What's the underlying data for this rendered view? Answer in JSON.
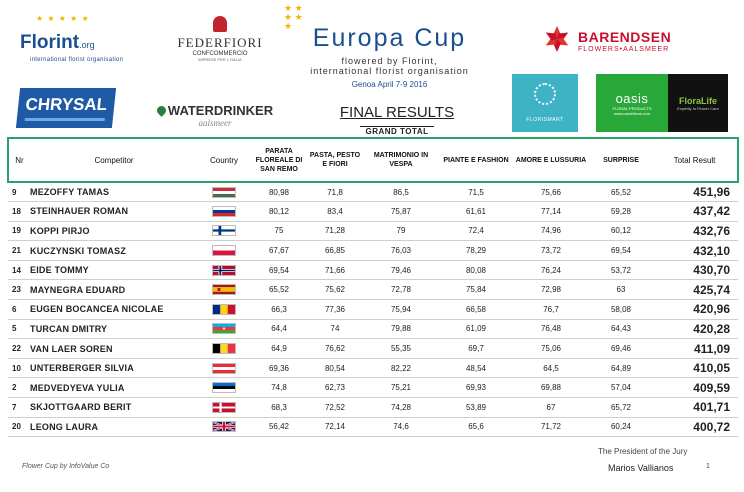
{
  "logos": {
    "florint_name": "Florint",
    "florint_suffix": ".org",
    "florint_tagline": "international florist organisation",
    "federfiori_name": "FEDERFIORI",
    "federfiori_sub": "CONFCOMMERCIO",
    "federfiori_sub2": "IMPRESE PER L'ITALIA",
    "barendsen_name": "BARENDSEN",
    "barendsen_sub": "FLOWERS•AALSMEER",
    "chrysal_name": "CHRYSAL",
    "waterdrinker_name": "WATERDRINKER",
    "waterdrinker_sub": "aalsmeer",
    "florismart_name": "FLORISMART",
    "oasis_name": "oasis",
    "oasis_sub": "FLORAL PRODUCTS www.oasisfloral.com",
    "floralife_name": "FloraLife",
    "floralife_sub": "Expertly In Flower Care"
  },
  "event": {
    "title": "Europa Cup",
    "subtitle1": "flowered by Florint,",
    "subtitle2": "international florist organisation",
    "location_date": "Genoa   April 7-9   2016"
  },
  "results_title": "FINAL RESULTS",
  "results_subtitle": "GRAND TOTAL",
  "table": {
    "headers": {
      "nr": "Nr",
      "competitor": "Competitor",
      "country": "Country",
      "c1": "PARATA FLOREALE DI SAN REMO",
      "c2": "PASTA, PESTO E FIORI",
      "c3": "MATRIMONIO IN VESPA",
      "c4": "PIANTE E FASHION",
      "c5": "AMORE E LUSSURIA",
      "c6": "SURPRISE",
      "total": "Total Result"
    },
    "rows": [
      {
        "nr": "9",
        "competitor": "MEZOFFY TAMAS",
        "flag": "hungary",
        "c1": "80,98",
        "c2": "71,8",
        "c3": "86,5",
        "c4": "71,5",
        "c5": "75,66",
        "c6": "65,52",
        "total": "451,96"
      },
      {
        "nr": "18",
        "competitor": "STEINHAUER ROMAN",
        "flag": "russia",
        "c1": "80,12",
        "c2": "83,4",
        "c3": "75,87",
        "c4": "61,61",
        "c5": "77,14",
        "c6": "59,28",
        "total": "437,42"
      },
      {
        "nr": "19",
        "competitor": "KOPPI PIRJO",
        "flag": "finland",
        "c1": "75",
        "c2": "71,28",
        "c3": "79",
        "c4": "72,4",
        "c5": "74,96",
        "c6": "60,12",
        "total": "432,76"
      },
      {
        "nr": "21",
        "competitor": "KUCZYNSKI TOMASZ",
        "flag": "poland",
        "c1": "67,67",
        "c2": "66,85",
        "c3": "76,03",
        "c4": "78,29",
        "c5": "73,72",
        "c6": "69,54",
        "total": "432,10"
      },
      {
        "nr": "14",
        "competitor": "EIDE TOMMY",
        "flag": "norway",
        "c1": "69,54",
        "c2": "71,66",
        "c3": "79,46",
        "c4": "80,08",
        "c5": "76,24",
        "c6": "53,72",
        "total": "430,70"
      },
      {
        "nr": "23",
        "competitor": "MAYNEGRA EDUARD",
        "flag": "spain",
        "c1": "65,52",
        "c2": "75,62",
        "c3": "72,78",
        "c4": "75,84",
        "c5": "72,98",
        "c6": "63",
        "total": "425,74"
      },
      {
        "nr": "6",
        "competitor": "EUGEN BOCANCEA NICOLAE",
        "flag": "romania",
        "c1": "66,3",
        "c2": "77,36",
        "c3": "75,94",
        "c4": "66,58",
        "c5": "76,7",
        "c6": "58,08",
        "total": "420,96"
      },
      {
        "nr": "5",
        "competitor": "TURCAN DMITRY",
        "flag": "azerbaijan",
        "c1": "64,4",
        "c2": "74",
        "c3": "79,88",
        "c4": "61,09",
        "c5": "76,48",
        "c6": "64,43",
        "total": "420,28"
      },
      {
        "nr": "22",
        "competitor": "VAN LAER SOREN",
        "flag": "belgium",
        "c1": "64,9",
        "c2": "76,62",
        "c3": "55,35",
        "c4": "69,7",
        "c5": "75,06",
        "c6": "69,46",
        "total": "411,09"
      },
      {
        "nr": "10",
        "competitor": "UNTERBERGER SILVIA",
        "flag": "austria",
        "c1": "69,36",
        "c2": "80,54",
        "c3": "82,22",
        "c4": "48,54",
        "c5": "64,5",
        "c6": "64,89",
        "total": "410,05"
      },
      {
        "nr": "2",
        "competitor": "MEDVEDYEVA YULIA",
        "flag": "estonia",
        "c1": "74,8",
        "c2": "62,73",
        "c3": "75,21",
        "c4": "69,93",
        "c5": "69,88",
        "c6": "57,04",
        "total": "409,59"
      },
      {
        "nr": "7",
        "competitor": "SKJOTTGAARD BERIT",
        "flag": "denmark",
        "c1": "68,3",
        "c2": "72,52",
        "c3": "74,28",
        "c4": "53,89",
        "c5": "67",
        "c6": "65,72",
        "total": "401,71"
      },
      {
        "nr": "20",
        "competitor": "LEONG LAURA",
        "flag": "uk",
        "c1": "56,42",
        "c2": "72,14",
        "c3": "74,6",
        "c4": "65,6",
        "c5": "71,72",
        "c6": "60,24",
        "total": "400,72"
      }
    ]
  },
  "footer": {
    "left": "Flower Cup by InfoValue Co",
    "jury_label": "The President of the Jury",
    "jury_name": "Marios Vallianos",
    "page_number": "1"
  }
}
